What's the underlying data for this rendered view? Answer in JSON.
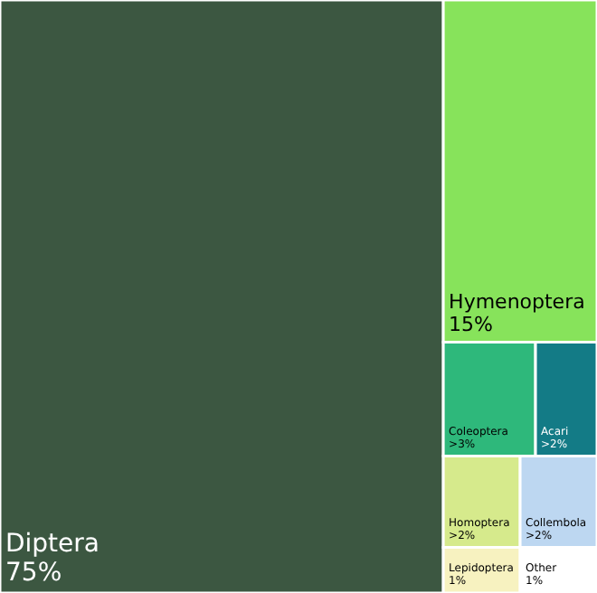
{
  "chart_data": {
    "type": "other",
    "categories": [
      "Diptera",
      "Hymenoptera",
      "Coleoptera",
      "Acari",
      "Homoptera",
      "Lepidoptera",
      "Collembola",
      "Other"
    ],
    "values": [
      75,
      15,
      3,
      2,
      2,
      1,
      2,
      1
    ],
    "value_labels": [
      "75%",
      "15%",
      ">3%",
      ">2%",
      ">2%",
      "1%",
      ">2%",
      "1%"
    ],
    "colors": [
      "#3c5741",
      "#87e35b",
      "#2eb87b",
      "#137b86",
      "#d6ea8c",
      "#f7f2c0",
      "#bdd7f1",
      "#ffffff"
    ]
  }
}
